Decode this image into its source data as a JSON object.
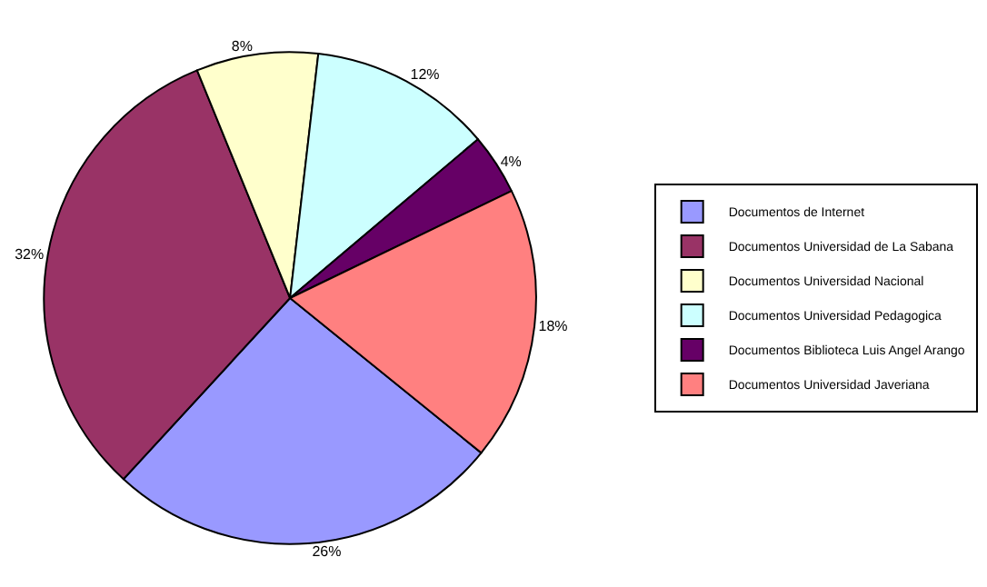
{
  "chart_data": {
    "type": "pie",
    "categories": [
      "Documentos de Internet",
      "Documentos Universidad de La Sabana",
      "Documentos Universidad Nacional",
      "Documentos Universidad Pedagogica",
      "Documentos Biblioteca Luis Angel Arango",
      "Documentos Universidad Javeriana"
    ],
    "values": [
      26,
      32,
      8,
      12,
      4,
      18
    ],
    "value_labels": [
      "26%",
      "32%",
      "8%",
      "12%",
      "4%",
      "18%"
    ],
    "colors": [
      "#9999ff",
      "#993366",
      "#ffffcc",
      "#ccffff",
      "#660066",
      "#ff8080"
    ],
    "legend": "right"
  }
}
